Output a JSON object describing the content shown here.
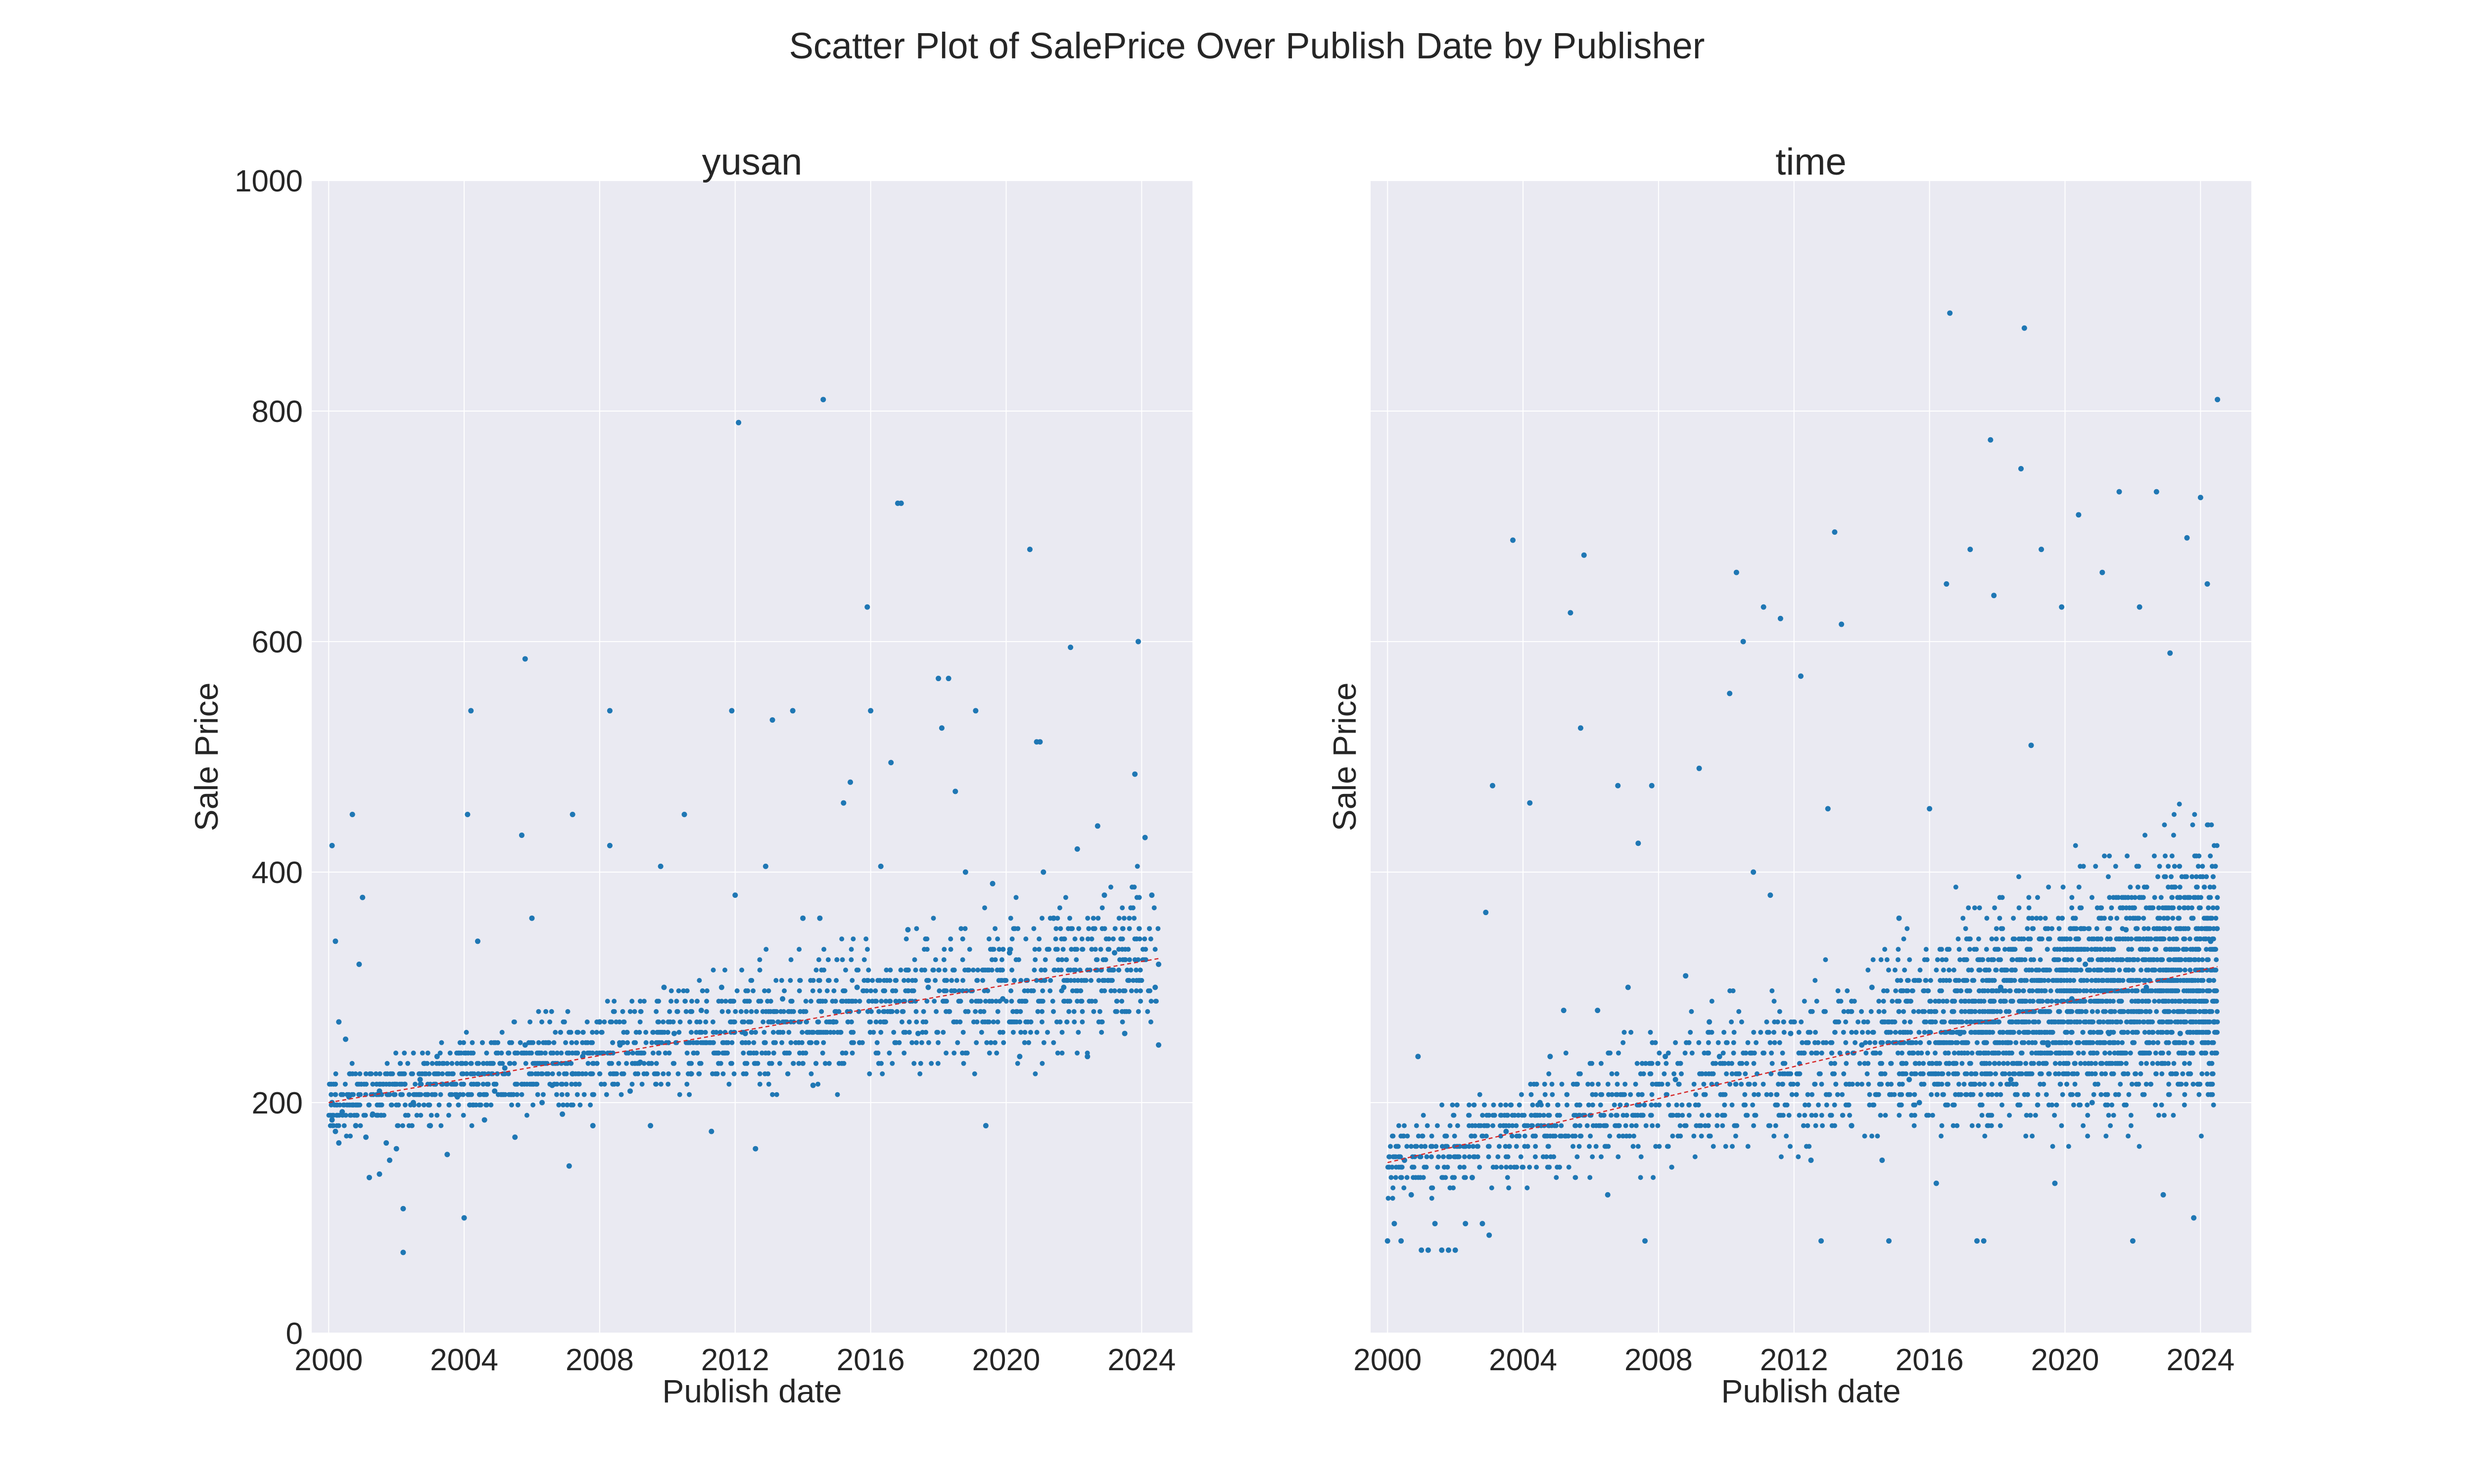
{
  "figure": {
    "title": "Scatter Plot of SalePrice Over Publish Date by Publisher",
    "colors": {
      "points": "#1f77b4",
      "trend": "#d62728",
      "panel_bg": "#eaeaf2",
      "grid": "#ffffff"
    }
  },
  "chart_data": [
    {
      "type": "scatter",
      "title": "yusan",
      "xlabel": "Publish date",
      "ylabel": "Sale Price",
      "xlim": [
        1999.5,
        2025.5
      ],
      "ylim": [
        0,
        1000
      ],
      "x_ticks": [
        2000,
        2004,
        2008,
        2012,
        2016,
        2020,
        2024
      ],
      "x_tick_labels": [
        "2000",
        "2004",
        "2008",
        "2012",
        "2016",
        "2020",
        "2024"
      ],
      "y_ticks": [
        0,
        200,
        400,
        600,
        800,
        1000
      ],
      "y_tick_labels": [
        "0",
        "200",
        "400",
        "600",
        "800",
        "1000"
      ],
      "grid": true,
      "trend_line": {
        "x": [
          2000,
          2024.5
        ],
        "y": [
          200,
          325
        ]
      },
      "points": [
        [
          2000.1,
          423
        ],
        [
          2000.2,
          340
        ],
        [
          2000.3,
          270
        ],
        [
          2000.5,
          255
        ],
        [
          2000.7,
          450
        ],
        [
          2001.0,
          378
        ],
        [
          2000.9,
          320
        ],
        [
          2000.1,
          200
        ],
        [
          2000.1,
          185
        ],
        [
          2000.2,
          175
        ],
        [
          2000.3,
          165
        ],
        [
          2000.4,
          192
        ],
        [
          2000.6,
          205
        ],
        [
          2000.8,
          180
        ],
        [
          2001.1,
          170
        ],
        [
          2001.3,
          190
        ],
        [
          2001.5,
          210
        ],
        [
          2001.7,
          165
        ],
        [
          2001.2,
          135
        ],
        [
          2001.5,
          138
        ],
        [
          2001.8,
          150
        ],
        [
          2002.0,
          160
        ],
        [
          2002.2,
          108
        ],
        [
          2002.2,
          70
        ],
        [
          2002.5,
          200
        ],
        [
          2002.7,
          220
        ],
        [
          2003.0,
          180
        ],
        [
          2003.2,
          240
        ],
        [
          2003.5,
          155
        ],
        [
          2003.8,
          205
        ],
        [
          2004.0,
          100
        ],
        [
          2004.2,
          540
        ],
        [
          2004.1,
          450
        ],
        [
          2004.4,
          340
        ],
        [
          2004.6,
          185
        ],
        [
          2004.9,
          210
        ],
        [
          2005.2,
          230
        ],
        [
          2005.5,
          170
        ],
        [
          2005.8,
          250
        ],
        [
          2005.8,
          585
        ],
        [
          2005.7,
          432
        ],
        [
          2006.0,
          360
        ],
        [
          2006.3,
          200
        ],
        [
          2006.6,
          215
        ],
        [
          2006.9,
          190
        ],
        [
          2007.2,
          225
        ],
        [
          2007.2,
          450
        ],
        [
          2007.1,
          145
        ],
        [
          2007.5,
          240
        ],
        [
          2007.8,
          180
        ],
        [
          2008.0,
          270
        ],
        [
          2008.3,
          540
        ],
        [
          2008.3,
          423
        ],
        [
          2008.6,
          250
        ],
        [
          2008.9,
          210
        ],
        [
          2009.2,
          235
        ],
        [
          2009.5,
          180
        ],
        [
          2009.8,
          405
        ],
        [
          2009.9,
          300
        ],
        [
          2010.2,
          260
        ],
        [
          2010.5,
          450
        ],
        [
          2010.7,
          225
        ],
        [
          2011.0,
          280
        ],
        [
          2011.3,
          175
        ],
        [
          2011.6,
          300
        ],
        [
          2011.9,
          540
        ],
        [
          2012.1,
          790
        ],
        [
          2012.0,
          380
        ],
        [
          2012.3,
          260
        ],
        [
          2012.6,
          160
        ],
        [
          2012.9,
          405
        ],
        [
          2013.1,
          532
        ],
        [
          2013.4,
          290
        ],
        [
          2013.7,
          540
        ],
        [
          2014.0,
          360
        ],
        [
          2014.3,
          215
        ],
        [
          2014.6,
          810
        ],
        [
          2014.5,
          360
        ],
        [
          2014.9,
          270
        ],
        [
          2015.2,
          460
        ],
        [
          2015.4,
          478
        ],
        [
          2015.6,
          300
        ],
        [
          2015.9,
          630
        ],
        [
          2016.0,
          540
        ],
        [
          2016.3,
          405
        ],
        [
          2016.6,
          495
        ],
        [
          2016.8,
          720
        ],
        [
          2016.9,
          720
        ],
        [
          2017.1,
          350
        ],
        [
          2017.4,
          260
        ],
        [
          2017.7,
          300
        ],
        [
          2018.0,
          568
        ],
        [
          2018.1,
          525
        ],
        [
          2018.3,
          568
        ],
        [
          2018.5,
          470
        ],
        [
          2018.8,
          400
        ],
        [
          2019.1,
          540
        ],
        [
          2019.4,
          180
        ],
        [
          2019.6,
          390
        ],
        [
          2019.9,
          290
        ],
        [
          2020.1,
          330
        ],
        [
          2020.4,
          240
        ],
        [
          2020.7,
          680
        ],
        [
          2020.9,
          513
        ],
        [
          2021.0,
          513
        ],
        [
          2021.1,
          400
        ],
        [
          2021.4,
          360
        ],
        [
          2021.7,
          300
        ],
        [
          2021.9,
          595
        ],
        [
          2022.1,
          420
        ],
        [
          2022.4,
          240
        ],
        [
          2022.7,
          440
        ],
        [
          2022.9,
          380
        ],
        [
          2023.2,
          330
        ],
        [
          2023.5,
          260
        ],
        [
          2023.8,
          485
        ],
        [
          2023.9,
          600
        ],
        [
          2024.1,
          430
        ],
        [
          2024.3,
          380
        ],
        [
          2024.4,
          300
        ],
        [
          2024.5,
          250
        ],
        [
          2024.5,
          320
        ]
      ]
    },
    {
      "type": "scatter",
      "title": "time",
      "xlabel": "Publish date",
      "ylabel": "Sale Price",
      "xlim": [
        1999.5,
        2025.5
      ],
      "ylim": [
        0,
        1000
      ],
      "x_ticks": [
        2000,
        2004,
        2008,
        2012,
        2016,
        2020,
        2024
      ],
      "x_tick_labels": [
        "2000",
        "2004",
        "2008",
        "2012",
        "2016",
        "2020",
        "2024"
      ],
      "y_ticks": [
        0,
        200,
        400,
        600,
        800,
        1000
      ],
      "y_tick_labels": [],
      "grid": true,
      "trend_line": {
        "x": [
          2000,
          2024.5
        ],
        "y": [
          148,
          318
        ]
      },
      "points": [
        [
          2000.0,
          80
        ],
        [
          2000.2,
          95
        ],
        [
          2000.4,
          80
        ],
        [
          2000.5,
          150
        ],
        [
          2000.7,
          120
        ],
        [
          2000.9,
          240
        ],
        [
          2001.0,
          72
        ],
        [
          2001.2,
          72
        ],
        [
          2001.4,
          95
        ],
        [
          2001.6,
          72
        ],
        [
          2001.8,
          72
        ],
        [
          2002.0,
          72
        ],
        [
          2002.3,
          95
        ],
        [
          2002.5,
          135
        ],
        [
          2002.8,
          95
        ],
        [
          2003.0,
          85
        ],
        [
          2002.9,
          365
        ],
        [
          2003.1,
          475
        ],
        [
          2003.5,
          175
        ],
        [
          2003.7,
          688
        ],
        [
          2004.2,
          460
        ],
        [
          2004.5,
          200
        ],
        [
          2004.8,
          240
        ],
        [
          2005.2,
          280
        ],
        [
          2005.4,
          625
        ],
        [
          2005.7,
          525
        ],
        [
          2005.8,
          675
        ],
        [
          2006.2,
          280
        ],
        [
          2006.5,
          120
        ],
        [
          2006.8,
          475
        ],
        [
          2007.1,
          300
        ],
        [
          2007.4,
          425
        ],
        [
          2007.6,
          80
        ],
        [
          2007.8,
          475
        ],
        [
          2008.2,
          240
        ],
        [
          2008.5,
          220
        ],
        [
          2008.8,
          310
        ],
        [
          2009.2,
          490
        ],
        [
          2009.5,
          270
        ],
        [
          2009.8,
          240
        ],
        [
          2010.1,
          555
        ],
        [
          2010.3,
          660
        ],
        [
          2010.5,
          600
        ],
        [
          2010.8,
          400
        ],
        [
          2011.1,
          630
        ],
        [
          2011.3,
          380
        ],
        [
          2011.6,
          620
        ],
        [
          2011.9,
          260
        ],
        [
          2012.2,
          570
        ],
        [
          2012.5,
          150
        ],
        [
          2012.8,
          80
        ],
        [
          2013.0,
          455
        ],
        [
          2013.2,
          695
        ],
        [
          2013.4,
          615
        ],
        [
          2013.7,
          180
        ],
        [
          2014.0,
          250
        ],
        [
          2014.3,
          300
        ],
        [
          2014.6,
          150
        ],
        [
          2014.8,
          80
        ],
        [
          2015.1,
          360
        ],
        [
          2015.4,
          220
        ],
        [
          2015.7,
          200
        ],
        [
          2016.0,
          455
        ],
        [
          2016.2,
          130
        ],
        [
          2016.5,
          650
        ],
        [
          2016.6,
          885
        ],
        [
          2016.9,
          260
        ],
        [
          2017.2,
          680
        ],
        [
          2017.4,
          80
        ],
        [
          2017.6,
          80
        ],
        [
          2017.8,
          775
        ],
        [
          2017.9,
          640
        ],
        [
          2018.1,
          300
        ],
        [
          2018.4,
          220
        ],
        [
          2018.7,
          750
        ],
        [
          2018.8,
          872
        ],
        [
          2019.0,
          510
        ],
        [
          2019.3,
          680
        ],
        [
          2019.5,
          250
        ],
        [
          2019.7,
          130
        ],
        [
          2019.9,
          630
        ],
        [
          2020.2,
          290
        ],
        [
          2020.4,
          710
        ],
        [
          2020.6,
          320
        ],
        [
          2020.8,
          200
        ],
        [
          2021.1,
          660
        ],
        [
          2021.3,
          260
        ],
        [
          2021.6,
          730
        ],
        [
          2021.8,
          350
        ],
        [
          2022.0,
          80
        ],
        [
          2022.2,
          630
        ],
        [
          2022.4,
          300
        ],
        [
          2022.7,
          730
        ],
        [
          2022.9,
          120
        ],
        [
          2023.1,
          590
        ],
        [
          2023.4,
          260
        ],
        [
          2023.6,
          690
        ],
        [
          2023.8,
          100
        ],
        [
          2024.0,
          725
        ],
        [
          2024.2,
          650
        ],
        [
          2024.3,
          340
        ],
        [
          2024.4,
          270
        ],
        [
          2024.5,
          810
        ]
      ]
    }
  ]
}
